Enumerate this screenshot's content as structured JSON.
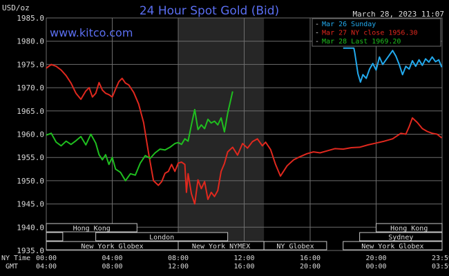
{
  "header": {
    "units": "USD/oz",
    "title": "24 Hour Spot Gold (Bid)",
    "timestamp": "March 28, 2023 11:07",
    "site": "www.kitco.com"
  },
  "colors": {
    "background": "#000000",
    "plot_background": "#000000",
    "highlight_band": "#262626",
    "grid": "#6e6e6e",
    "title": "#5a6ef0",
    "site": "#5a6ef0",
    "series_sunday": "#22aaee",
    "series_ny_close": "#e0281e",
    "series_last": "#1fbf1f",
    "session_bar_fill": "#000000",
    "session_bar_text": "#dcdcdc"
  },
  "chart_data": {
    "type": "line",
    "ylabel": "USD/oz",
    "ylim": [
      1935.0,
      1985.0
    ],
    "yticks": [
      "1985.0",
      "1980.0",
      "1975.0",
      "1970.0",
      "1965.0",
      "1960.0",
      "1955.0",
      "1950.0",
      "1945.0",
      "1940.0",
      "1935.0"
    ],
    "ytick_values": [
      1985,
      1980,
      1975,
      1970,
      1965,
      1960,
      1955,
      1950,
      1945,
      1940,
      1935
    ],
    "xlim": [
      0,
      24
    ],
    "xtick_values": [
      0,
      4,
      8,
      12,
      16,
      20,
      24
    ],
    "xtick_labels_ny": [
      "00:00",
      "04:00",
      "08:00",
      "12:00",
      "16:00",
      "20:00",
      "23:59"
    ],
    "xtick_labels_gmt": [
      "04:00",
      "08:00",
      "12:00",
      "16:00",
      "20:00",
      "00:00",
      "03:59"
    ],
    "axis_label_ny": "NY Time",
    "axis_label_gmt": "GMT",
    "highlight_range": [
      8,
      13.2
    ],
    "legend": [
      {
        "marker": "-",
        "label": "Mar 26 Sunday",
        "color_key": "series_sunday"
      },
      {
        "marker": "-",
        "label": "Mar 27 NY close 1956.30",
        "color_key": "series_ny_close"
      },
      {
        "marker": "-",
        "label": "Mar 28 Last 1969.20",
        "color_key": "series_last"
      }
    ],
    "series": [
      {
        "name": "Mar 26 Sunday",
        "color_key": "series_sunday",
        "x": [
          18.0,
          18.65,
          18.7,
          18.9,
          19.05,
          19.2,
          19.4,
          19.6,
          19.8,
          20.0,
          20.2,
          20.4,
          20.6,
          20.8,
          21.0,
          21.2,
          21.4,
          21.6,
          21.8,
          22.0,
          22.2,
          22.4,
          22.6,
          22.8,
          23.0,
          23.2,
          23.4,
          23.6,
          23.8,
          23.98
        ],
        "values": [
          1978.5,
          1978.5,
          1977.6,
          1973.0,
          1971.2,
          1972.8,
          1972.0,
          1974.0,
          1975.2,
          1973.8,
          1976.6,
          1975.0,
          1976.0,
          1977.0,
          1978.0,
          1976.8,
          1975.0,
          1972.8,
          1974.6,
          1974.0,
          1975.8,
          1974.6,
          1976.0,
          1974.8,
          1976.2,
          1975.5,
          1976.6,
          1975.6,
          1976.0,
          1974.4
        ]
      },
      {
        "name": "Mar 27 NY close 1956.30",
        "color_key": "series_ny_close",
        "x": [
          0.0,
          0.3,
          0.6,
          0.9,
          1.2,
          1.5,
          1.8,
          2.1,
          2.4,
          2.6,
          2.8,
          3.0,
          3.2,
          3.4,
          3.6,
          3.8,
          4.0,
          4.2,
          4.4,
          4.6,
          4.8,
          5.0,
          5.3,
          5.6,
          5.9,
          6.2,
          6.5,
          6.8,
          7.0,
          7.2,
          7.4,
          7.6,
          7.8,
          8.0,
          8.2,
          8.4,
          8.5,
          8.6,
          8.8,
          9.0,
          9.2,
          9.4,
          9.6,
          9.8,
          10.0,
          10.2,
          10.4,
          10.6,
          10.8,
          11.0,
          11.3,
          11.6,
          11.9,
          12.2,
          12.5,
          12.8,
          13.1,
          13.3,
          13.6,
          13.9,
          14.2,
          14.6,
          15.0,
          15.4,
          15.8,
          16.2,
          16.6,
          17.0,
          17.5,
          18.0,
          18.5,
          19.0,
          19.5,
          20.0,
          20.5,
          21.0,
          21.5,
          21.8,
          22.0,
          22.2,
          22.5,
          22.8,
          23.1,
          23.4,
          23.7,
          23.98
        ],
        "values": [
          1974.2,
          1975.0,
          1974.6,
          1973.8,
          1972.6,
          1971.0,
          1968.8,
          1967.5,
          1969.3,
          1970.0,
          1968.0,
          1968.8,
          1971.1,
          1969.5,
          1968.8,
          1968.5,
          1968.0,
          1969.7,
          1971.3,
          1972.0,
          1971.0,
          1970.6,
          1969.0,
          1966.5,
          1962.5,
          1956.0,
          1950.0,
          1949.0,
          1949.8,
          1951.6,
          1952.0,
          1953.5,
          1952.0,
          1953.8,
          1954.0,
          1953.5,
          1947.5,
          1951.5,
          1947.2,
          1945.0,
          1950.2,
          1948.3,
          1949.8,
          1946.0,
          1947.5,
          1946.6,
          1947.9,
          1952.0,
          1953.7,
          1956.2,
          1957.2,
          1955.5,
          1958.0,
          1957.0,
          1958.4,
          1959.0,
          1957.5,
          1958.3,
          1956.7,
          1953.5,
          1951.0,
          1953.2,
          1954.5,
          1955.2,
          1955.8,
          1956.2,
          1956.0,
          1956.4,
          1956.9,
          1956.8,
          1957.1,
          1957.2,
          1957.7,
          1958.1,
          1958.5,
          1959.0,
          1960.2,
          1960.0,
          1961.6,
          1963.5,
          1962.5,
          1961.2,
          1960.6,
          1960.2,
          1960.0,
          1959.2
        ]
      },
      {
        "name": "Mar 28 Last 1969.20",
        "color_key": "series_last",
        "x": [
          0.0,
          0.3,
          0.6,
          0.9,
          1.2,
          1.5,
          1.8,
          2.1,
          2.4,
          2.7,
          3.0,
          3.2,
          3.4,
          3.6,
          3.8,
          4.0,
          4.2,
          4.5,
          4.8,
          5.1,
          5.4,
          5.7,
          6.0,
          6.3,
          6.6,
          6.9,
          7.2,
          7.5,
          7.8,
          8.0,
          8.2,
          8.4,
          8.6,
          8.8,
          9.0,
          9.2,
          9.4,
          9.6,
          9.8,
          10.0,
          10.2,
          10.4,
          10.6,
          10.8,
          11.0,
          11.3
        ],
        "values": [
          1959.8,
          1960.2,
          1958.3,
          1957.5,
          1958.5,
          1957.8,
          1958.6,
          1959.5,
          1957.7,
          1960.0,
          1958.1,
          1955.6,
          1954.5,
          1955.6,
          1953.5,
          1955.0,
          1952.5,
          1951.8,
          1950.0,
          1951.5,
          1951.2,
          1953.8,
          1955.4,
          1954.8,
          1956.0,
          1956.8,
          1956.6,
          1957.2,
          1958.0,
          1958.2,
          1957.8,
          1959.0,
          1958.5,
          1962.0,
          1965.3,
          1961.0,
          1962.0,
          1961.2,
          1963.2,
          1962.4,
          1962.8,
          1962.0,
          1963.5,
          1960.5,
          1964.5,
          1969.2
        ]
      }
    ]
  },
  "sessions": {
    "row1": [
      {
        "label": "Hong Kong",
        "start": 0.0,
        "end": 5.5
      },
      {
        "label": "Hong Kong",
        "start": 20.0,
        "end": 24.0
      }
    ],
    "row2": [
      {
        "label": "",
        "start": 0.0,
        "end": 1.0
      },
      {
        "label": "London",
        "start": 3.0,
        "end": 11.0
      },
      {
        "label": "Sydney",
        "start": 19.0,
        "end": 24.0
      }
    ],
    "row3": [
      {
        "label": "New York Globex",
        "start": 0.0,
        "end": 8.0
      },
      {
        "label": "New York NYMEX",
        "start": 8.0,
        "end": 13.2
      },
      {
        "label": "NY Globex",
        "start": 13.2,
        "end": 17.0
      },
      {
        "label": "New York Globex",
        "start": 18.0,
        "end": 24.0
      }
    ]
  }
}
